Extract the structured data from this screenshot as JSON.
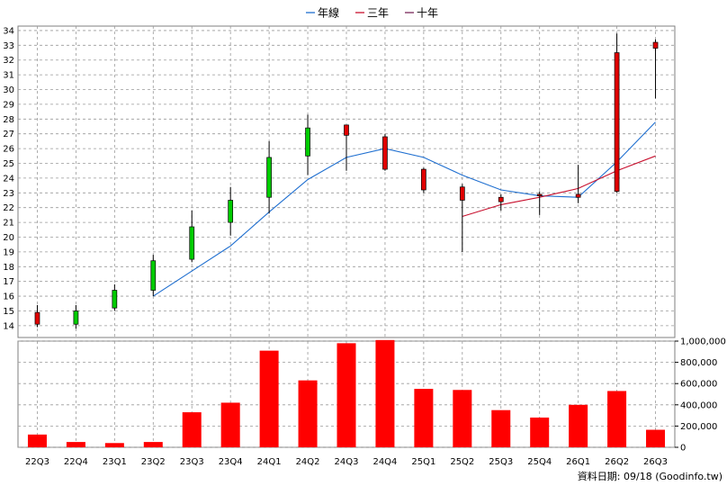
{
  "chart_data": [
    {
      "type": "candlestick",
      "legend": {
        "placement": "top-center",
        "entries": [
          {
            "name": "年線",
            "color": "#1f6fd0"
          },
          {
            "name": "三年",
            "color": "#c8102e"
          },
          {
            "name": "十年",
            "color": "#7a2a5a"
          }
        ]
      },
      "categories": [
        "22Q3",
        "22Q4",
        "23Q1",
        "23Q2",
        "23Q3",
        "23Q4",
        "24Q1",
        "24Q2",
        "24Q3",
        "24Q4",
        "25Q1",
        "25Q2",
        "25Q3",
        "25Q4",
        "26Q1",
        "26Q2",
        "26Q3"
      ],
      "ohlc": [
        {
          "open": 14.1,
          "high": 15.4,
          "low": 13.9,
          "close": 14.9
        },
        {
          "open": 15.0,
          "high": 15.4,
          "low": 13.8,
          "close": 14.1
        },
        {
          "open": 16.4,
          "high": 16.8,
          "low": 15.0,
          "close": 15.2
        },
        {
          "open": 18.4,
          "high": 18.8,
          "low": 16.0,
          "close": 16.4
        },
        {
          "open": 20.7,
          "high": 21.8,
          "low": 18.3,
          "close": 18.5
        },
        {
          "open": 22.5,
          "high": 23.4,
          "low": 20.1,
          "close": 21.0
        },
        {
          "open": 25.4,
          "high": 26.5,
          "low": 21.6,
          "close": 22.7
        },
        {
          "open": 27.4,
          "high": 28.3,
          "low": 24.2,
          "close": 25.5
        },
        {
          "open": 26.9,
          "high": 27.6,
          "low": 24.5,
          "close": 27.6
        },
        {
          "open": 24.6,
          "high": 27.0,
          "low": 24.5,
          "close": 26.8
        },
        {
          "open": 23.2,
          "high": 24.7,
          "low": 23.0,
          "close": 24.6
        },
        {
          "open": 22.5,
          "high": 23.6,
          "low": 19.0,
          "close": 23.4
        },
        {
          "open": 22.4,
          "high": 22.9,
          "low": 21.8,
          "close": 22.7
        },
        {
          "open": 22.8,
          "high": 23.1,
          "low": 21.5,
          "close": 22.9
        },
        {
          "open": 22.7,
          "high": 24.9,
          "low": 22.3,
          "close": 22.9
        },
        {
          "open": 23.1,
          "high": 33.8,
          "low": 23.0,
          "close": 32.5
        },
        {
          "open": 32.8,
          "high": 33.4,
          "low": 29.4,
          "close": 33.2
        }
      ],
      "up_color": "#e00000",
      "down_color": "#00cc00",
      "lines": [
        {
          "name": "年線",
          "color": "#1f6fd0",
          "values": [
            null,
            null,
            null,
            16.0,
            17.7,
            19.4,
            21.7,
            23.9,
            25.4,
            26.0,
            25.4,
            24.2,
            23.2,
            22.8,
            22.7,
            25.1,
            27.8
          ]
        },
        {
          "name": "三年",
          "color": "#c8102e",
          "values": [
            null,
            null,
            null,
            null,
            null,
            null,
            null,
            null,
            null,
            null,
            null,
            21.4,
            22.2,
            22.7,
            23.3,
            24.5,
            25.5
          ]
        }
      ],
      "yticks": [
        14,
        15,
        16,
        17,
        18,
        19,
        20,
        21,
        22,
        23,
        24,
        25,
        26,
        27,
        28,
        29,
        30,
        31,
        32,
        33,
        34
      ],
      "ylim": [
        13.2,
        34.3
      ],
      "grid": true
    },
    {
      "type": "bar",
      "categories": [
        "22Q3",
        "22Q4",
        "23Q1",
        "23Q2",
        "23Q3",
        "23Q4",
        "24Q1",
        "24Q2",
        "24Q3",
        "24Q4",
        "25Q1",
        "25Q2",
        "25Q3",
        "25Q4",
        "26Q1",
        "26Q2",
        "26Q3"
      ],
      "values": [
        120000,
        50000,
        40000,
        50000,
        330000,
        420000,
        910000,
        630000,
        980000,
        1010000,
        550000,
        540000,
        350000,
        280000,
        400000,
        530000,
        165000
      ],
      "color": "#ff0000",
      "yticks": [
        0,
        200000,
        400000,
        600000,
        800000,
        1000000
      ],
      "ytick_labels": [
        "0",
        "200,000",
        "400,000",
        "600,000",
        "800,000",
        "1,000,000"
      ],
      "ylim": [
        0,
        1000000
      ],
      "axis_side": "right",
      "grid": true
    }
  ],
  "footer": {
    "source": "資料日期: 09/18  (Goodinfo.tw)"
  }
}
